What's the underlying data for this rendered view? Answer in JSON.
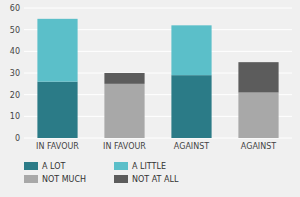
{
  "chart_data": {
    "type": "bar",
    "categories": [
      "IN FAVOUR",
      "IN FAVOUR",
      "AGAINST",
      "AGAINST"
    ],
    "series": [
      {
        "name": "A LOT",
        "color": "#2b7b87",
        "values": [
          26,
          0,
          29,
          0
        ]
      },
      {
        "name": "A LITTLE",
        "color": "#5bbfc9",
        "values": [
          29,
          0,
          23,
          0
        ]
      },
      {
        "name": "NOT MUCH",
        "color": "#a8a8a8",
        "values": [
          0,
          25,
          0,
          21
        ]
      },
      {
        "name": "NOT AT ALL",
        "color": "#5c5c5c",
        "values": [
          0,
          5,
          0,
          14
        ]
      }
    ],
    "stacked": true,
    "ylim": [
      0,
      60
    ],
    "yticks": [
      0,
      10,
      20,
      30,
      40,
      50,
      60
    ],
    "grid": true,
    "legend": "bottom"
  }
}
